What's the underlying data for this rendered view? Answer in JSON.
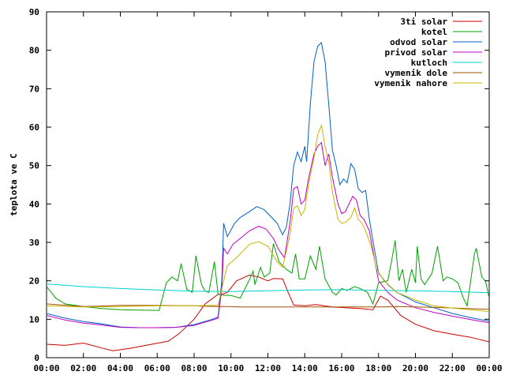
{
  "chart_data": {
    "type": "line",
    "title": "",
    "xlabel": "",
    "ylabel": "teplota ve C",
    "xlim": [
      0,
      24
    ],
    "ylim": [
      0,
      90
    ],
    "xticks": [
      "00:00",
      "02:00",
      "04:00",
      "06:00",
      "08:00",
      "10:00",
      "12:00",
      "14:00",
      "16:00",
      "18:00",
      "20:00",
      "22:00",
      "00:00"
    ],
    "yticks": [
      "0",
      "10",
      "20",
      "30",
      "40",
      "50",
      "60",
      "70",
      "80",
      "90"
    ],
    "grid": false,
    "legend_position": "top-right",
    "series": [
      {
        "name": "3ti solar",
        "color": "#cc0000",
        "points": [
          [
            0,
            3.5
          ],
          [
            1,
            3.2
          ],
          [
            2,
            3.8
          ],
          [
            3,
            2.5
          ],
          [
            3.6,
            1.8
          ],
          [
            4.5,
            2.4
          ],
          [
            5.5,
            3.3
          ],
          [
            6.6,
            4.3
          ],
          [
            7.2,
            6.3
          ],
          [
            8,
            10
          ],
          [
            8.6,
            14
          ],
          [
            9.3,
            16.5
          ],
          [
            9.5,
            16.5
          ],
          [
            9.8,
            17
          ],
          [
            10.3,
            20
          ],
          [
            11,
            21.5
          ],
          [
            11.5,
            21
          ],
          [
            12,
            20
          ],
          [
            12.3,
            20.6
          ],
          [
            12.8,
            20.5
          ],
          [
            13.1,
            17
          ],
          [
            13.4,
            13.7
          ],
          [
            14,
            13.5
          ],
          [
            14.6,
            13.8
          ],
          [
            15.5,
            13.2
          ],
          [
            16.2,
            13
          ],
          [
            17,
            12.8
          ],
          [
            17.7,
            12.5
          ],
          [
            18.1,
            16
          ],
          [
            18.5,
            15
          ],
          [
            19.2,
            11
          ],
          [
            20,
            8.7
          ],
          [
            21,
            7
          ],
          [
            22,
            6.1
          ],
          [
            23,
            5.3
          ],
          [
            24,
            4.1
          ]
        ]
      },
      {
        "name": "kotel",
        "color": "#00a000",
        "points": [
          [
            0,
            18.5
          ],
          [
            0.5,
            15.5
          ],
          [
            1,
            14
          ],
          [
            2,
            13.3
          ],
          [
            3,
            12.8
          ],
          [
            4,
            12.5
          ],
          [
            5,
            12.4
          ],
          [
            6.1,
            12.3
          ],
          [
            6.5,
            19.5
          ],
          [
            6.8,
            21
          ],
          [
            7.1,
            20
          ],
          [
            7.3,
            24.5
          ],
          [
            7.6,
            17.8
          ],
          [
            7.9,
            17
          ],
          [
            8.1,
            26.5
          ],
          [
            8.4,
            19
          ],
          [
            8.6,
            17.3
          ],
          [
            8.8,
            17
          ],
          [
            9.1,
            25
          ],
          [
            9.3,
            16.5
          ],
          [
            9.5,
            16.3
          ],
          [
            10,
            16.2
          ],
          [
            10.5,
            15.5
          ],
          [
            11,
            20.3
          ],
          [
            11.2,
            22.5
          ],
          [
            11.3,
            19
          ],
          [
            11.6,
            23.5
          ],
          [
            11.8,
            21
          ],
          [
            12.1,
            22
          ],
          [
            12.3,
            29.7
          ],
          [
            12.6,
            25
          ],
          [
            13,
            23
          ],
          [
            13.3,
            22
          ],
          [
            13.5,
            27
          ],
          [
            13.7,
            20.5
          ],
          [
            14,
            20.5
          ],
          [
            14.3,
            26.5
          ],
          [
            14.6,
            23
          ],
          [
            14.8,
            29
          ],
          [
            15.1,
            20.5
          ],
          [
            15.5,
            17
          ],
          [
            15.7,
            16.3
          ],
          [
            16,
            18
          ],
          [
            16.3,
            17.5
          ],
          [
            16.7,
            18.5
          ],
          [
            17,
            18
          ],
          [
            17.4,
            17
          ],
          [
            17.7,
            14
          ],
          [
            18,
            19.5
          ],
          [
            18.5,
            20
          ],
          [
            18.7,
            25
          ],
          [
            18.9,
            30.5
          ],
          [
            19.1,
            20
          ],
          [
            19.3,
            23
          ],
          [
            19.5,
            17
          ],
          [
            19.8,
            23
          ],
          [
            20,
            19.5
          ],
          [
            20.1,
            29
          ],
          [
            20.3,
            20.5
          ],
          [
            20.5,
            19
          ],
          [
            20.7,
            20.5
          ],
          [
            20.9,
            22
          ],
          [
            21.2,
            29
          ],
          [
            21.5,
            20
          ],
          [
            21.7,
            21
          ],
          [
            22,
            20.5
          ],
          [
            22.3,
            19.5
          ],
          [
            22.6,
            15.5
          ],
          [
            22.8,
            13.5
          ],
          [
            23.2,
            27
          ],
          [
            23.3,
            28.5
          ],
          [
            23.6,
            21
          ],
          [
            23.8,
            20
          ],
          [
            24,
            15.5
          ]
        ]
      },
      {
        "name": "odvod solar",
        "color": "#0060c8",
        "points": [
          [
            0,
            11.5
          ],
          [
            1,
            10.3
          ],
          [
            2,
            9.4
          ],
          [
            3,
            8.8
          ],
          [
            4,
            8
          ],
          [
            5,
            7.8
          ],
          [
            6,
            7.8
          ],
          [
            7,
            7.9
          ],
          [
            8,
            8.6
          ],
          [
            9,
            10
          ],
          [
            9.3,
            10.6
          ],
          [
            9.5,
            20
          ],
          [
            9.6,
            35
          ],
          [
            9.8,
            31.5
          ],
          [
            10.2,
            35
          ],
          [
            10.5,
            36.5
          ],
          [
            11,
            38
          ],
          [
            11.4,
            39.3
          ],
          [
            11.8,
            38.5
          ],
          [
            12.2,
            36.5
          ],
          [
            12.5,
            35
          ],
          [
            12.8,
            32
          ],
          [
            13,
            34
          ],
          [
            13.2,
            40
          ],
          [
            13.4,
            50
          ],
          [
            13.6,
            53.5
          ],
          [
            13.8,
            51
          ],
          [
            14,
            55
          ],
          [
            14.1,
            51
          ],
          [
            14.3,
            66
          ],
          [
            14.5,
            77
          ],
          [
            14.7,
            81
          ],
          [
            14.9,
            82
          ],
          [
            15.1,
            77
          ],
          [
            15.3,
            66
          ],
          [
            15.5,
            54
          ],
          [
            15.7,
            50
          ],
          [
            15.9,
            45
          ],
          [
            16.1,
            46.5
          ],
          [
            16.3,
            45.5
          ],
          [
            16.5,
            50.5
          ],
          [
            16.7,
            49
          ],
          [
            16.9,
            44
          ],
          [
            17.1,
            43
          ],
          [
            17.3,
            43.5
          ],
          [
            17.5,
            36
          ],
          [
            17.8,
            27.5
          ],
          [
            18,
            22
          ],
          [
            18.5,
            19
          ],
          [
            19,
            17
          ],
          [
            20,
            14.5
          ],
          [
            21,
            13
          ],
          [
            22,
            11.5
          ],
          [
            23,
            10.4
          ],
          [
            24,
            9.5
          ]
        ]
      },
      {
        "name": "privod solar",
        "color": "#c000c0",
        "points": [
          [
            0,
            11
          ],
          [
            1,
            9.8
          ],
          [
            2,
            9
          ],
          [
            3,
            8.5
          ],
          [
            4,
            7.9
          ],
          [
            5,
            7.8
          ],
          [
            6,
            7.8
          ],
          [
            7,
            7.9
          ],
          [
            8,
            8.4
          ],
          [
            9,
            9.8
          ],
          [
            9.3,
            10.3
          ],
          [
            9.5,
            18
          ],
          [
            9.6,
            28.5
          ],
          [
            9.8,
            27
          ],
          [
            10.1,
            29.5
          ],
          [
            10.5,
            31
          ],
          [
            11,
            33
          ],
          [
            11.5,
            34.2
          ],
          [
            11.9,
            33.5
          ],
          [
            12.3,
            31
          ],
          [
            12.6,
            28
          ],
          [
            12.9,
            26
          ],
          [
            13.2,
            35
          ],
          [
            13.4,
            44
          ],
          [
            13.6,
            44.5
          ],
          [
            13.8,
            40
          ],
          [
            14,
            41
          ],
          [
            14.2,
            46.5
          ],
          [
            14.5,
            53
          ],
          [
            14.7,
            55
          ],
          [
            14.9,
            56
          ],
          [
            15.1,
            50
          ],
          [
            15.3,
            53
          ],
          [
            15.5,
            47
          ],
          [
            15.8,
            40
          ],
          [
            16,
            37.5
          ],
          [
            16.2,
            38
          ],
          [
            16.4,
            40
          ],
          [
            16.6,
            42
          ],
          [
            16.8,
            41
          ],
          [
            17,
            37
          ],
          [
            17.2,
            36
          ],
          [
            17.5,
            33
          ],
          [
            17.8,
            25
          ],
          [
            18,
            20
          ],
          [
            18.5,
            17
          ],
          [
            19,
            15
          ],
          [
            20,
            13
          ],
          [
            21,
            11.8
          ],
          [
            22,
            10.8
          ],
          [
            23,
            9.9
          ],
          [
            24,
            9.1
          ]
        ]
      },
      {
        "name": "kutloch",
        "color": "#00d0d0",
        "points": [
          [
            0,
            19.2
          ],
          [
            2,
            18.5
          ],
          [
            4,
            18
          ],
          [
            6,
            17.6
          ],
          [
            8,
            17.3
          ],
          [
            10,
            17.2
          ],
          [
            12,
            17.4
          ],
          [
            14,
            17.6
          ],
          [
            16,
            17.7
          ],
          [
            18,
            17.5
          ],
          [
            20,
            17.4
          ],
          [
            22,
            17.2
          ],
          [
            24,
            16.9
          ]
        ]
      },
      {
        "name": "vymenik dole",
        "color": "#a05000",
        "points": [
          [
            0,
            14
          ],
          [
            2,
            13.3
          ],
          [
            4,
            13.6
          ],
          [
            6,
            13.6
          ],
          [
            8,
            13.5
          ],
          [
            9.3,
            13.3
          ],
          [
            9.8,
            13.3
          ],
          [
            10.5,
            13.2
          ],
          [
            18.2,
            13.2
          ],
          [
            19,
            13.3
          ],
          [
            21,
            13.1
          ],
          [
            24,
            12.6
          ]
        ]
      },
      {
        "name": "vymenik nahore",
        "color": "#c8b400",
        "points": [
          [
            0,
            13.5
          ],
          [
            2,
            13.2
          ],
          [
            4,
            13.3
          ],
          [
            6,
            13.5
          ],
          [
            8,
            13.5
          ],
          [
            9.3,
            13.6
          ],
          [
            9.6,
            20
          ],
          [
            9.8,
            24
          ],
          [
            10.3,
            26
          ],
          [
            11,
            29.5
          ],
          [
            11.5,
            30.2
          ],
          [
            12,
            29
          ],
          [
            12.5,
            25
          ],
          [
            12.8,
            23.5
          ],
          [
            13.2,
            32
          ],
          [
            13.4,
            39
          ],
          [
            13.6,
            39.5
          ],
          [
            13.8,
            37
          ],
          [
            14,
            38.5
          ],
          [
            14.2,
            45
          ],
          [
            14.5,
            52
          ],
          [
            14.7,
            58
          ],
          [
            14.9,
            60.5
          ],
          [
            15.1,
            55
          ],
          [
            15.3,
            51
          ],
          [
            15.5,
            43
          ],
          [
            15.8,
            36
          ],
          [
            16,
            35
          ],
          [
            16.2,
            35.2
          ],
          [
            16.5,
            36.5
          ],
          [
            16.7,
            39
          ],
          [
            16.9,
            36
          ],
          [
            17.1,
            35
          ],
          [
            17.3,
            33
          ],
          [
            17.6,
            29
          ],
          [
            17.9,
            23
          ],
          [
            18.3,
            20
          ],
          [
            19,
            17
          ],
          [
            20,
            15
          ],
          [
            21,
            13.5
          ],
          [
            22,
            12.9
          ],
          [
            23,
            12.5
          ],
          [
            24,
            12
          ]
        ]
      }
    ]
  }
}
